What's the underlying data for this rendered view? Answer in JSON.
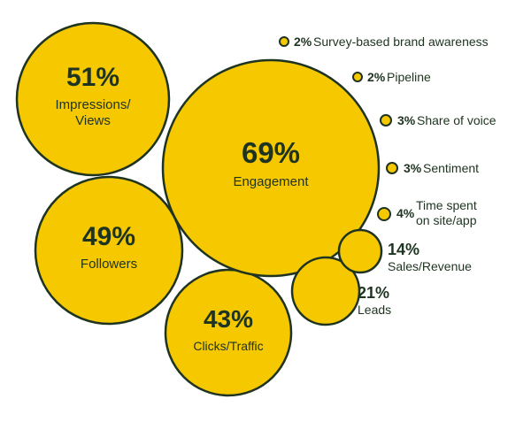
{
  "chart_data": {
    "type": "bubble",
    "colors": {
      "fill": "#f6c800",
      "stroke": "#1e3320",
      "text": "#1e3320"
    },
    "items": [
      {
        "value_label": "51%",
        "value": 51,
        "label": [
          "Impressions/",
          "Views"
        ]
      },
      {
        "value_label": "69%",
        "value": 69,
        "label": [
          "Engagement"
        ]
      },
      {
        "value_label": "49%",
        "value": 49,
        "label": [
          "Followers"
        ]
      },
      {
        "value_label": "43%",
        "value": 43,
        "label": [
          "Clicks/Traffic"
        ]
      },
      {
        "value_label": "21%",
        "value": 21,
        "label": [
          "Leads"
        ]
      },
      {
        "value_label": "14%",
        "value": 14,
        "label": [
          "Sales/Revenue"
        ]
      },
      {
        "value_label": "4%",
        "value": 4,
        "label": [
          "Time spent",
          "on site/app"
        ]
      },
      {
        "value_label": "3%",
        "value": 3,
        "label": [
          "Sentiment"
        ]
      },
      {
        "value_label": "3%",
        "value": 3,
        "label": [
          "Share of voice"
        ]
      },
      {
        "value_label": "2%",
        "value": 2,
        "label": [
          "Pipeline"
        ]
      },
      {
        "value_label": "2%",
        "value": 2,
        "label": [
          "Survey-based brand awareness"
        ]
      }
    ]
  }
}
